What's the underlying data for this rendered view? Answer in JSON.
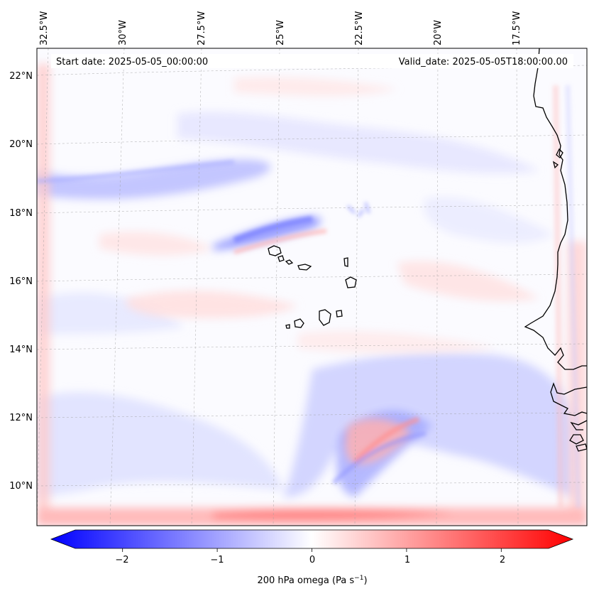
{
  "header": {
    "start_date": "Start date: 2025-05-05_00:00:00",
    "valid_date": "Valid_date: 2025-05-05T18:00:00.00"
  },
  "top_axis": {
    "tick_labels": [
      "32.5°W",
      "30°W",
      "27.5°W",
      "25°W",
      "22.5°W",
      "20°W",
      "17.5°W"
    ]
  },
  "left_axis": {
    "tick_labels": [
      "22°N",
      "20°N",
      "18°N",
      "16°N",
      "14°N",
      "12°N",
      "10°N"
    ]
  },
  "colorbar": {
    "tick_labels": [
      "−2",
      "−1",
      "0",
      "1",
      "2"
    ],
    "tick_values": [
      -2,
      -1,
      0,
      1,
      2
    ],
    "range": [
      -2.5,
      2.5
    ],
    "label_prefix": "200 hPa omega (Pa s",
    "label_exponent": "−1",
    "label_suffix": ")",
    "colormap": "bwr",
    "color_min": "#0000ff",
    "color_mid": "#ffffff",
    "color_max": "#ff0000"
  }
}
